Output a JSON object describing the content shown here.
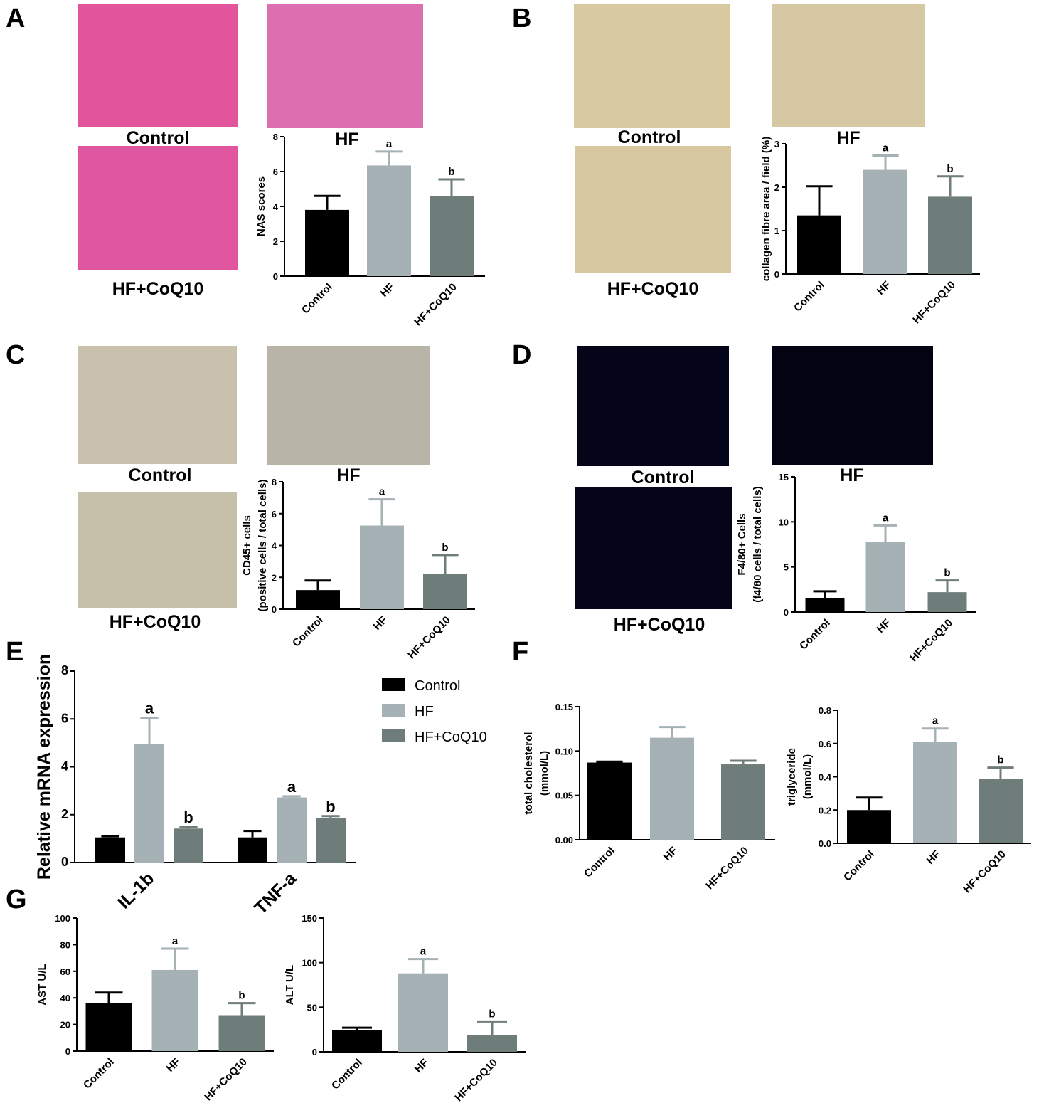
{
  "chart_data": [
    {
      "type": "bar",
      "panel": "A",
      "images": [
        {
          "label": "Control",
          "color": "#e2559c"
        },
        {
          "label": "HF",
          "color": "#dc6fb0"
        },
        {
          "label": "HF+CoQ10",
          "color": "#e0569f"
        }
      ],
      "ylabel": [
        "NAS scores"
      ],
      "categories": [
        "Control",
        "HF",
        "HF+CoQ10"
      ],
      "values": [
        3.8,
        6.35,
        4.6
      ],
      "errors": [
        0.8,
        0.8,
        0.95
      ],
      "annotations": [
        null,
        "a",
        "b"
      ],
      "colors": [
        "#000000",
        "#a5b1b5",
        "#6f7d7a"
      ],
      "ylim": [
        0,
        8
      ],
      "yticks": [
        0,
        2,
        4,
        6,
        8
      ]
    },
    {
      "type": "bar",
      "panel": "B",
      "images": [
        {
          "label": "Control",
          "color": "#d8c9a0"
        },
        {
          "label": "HF",
          "color": "#d6c8a2"
        },
        {
          "label": "HF+CoQ10",
          "color": "#d7c8a0"
        }
      ],
      "ylabel": [
        "collagen fibre area / field (%)"
      ],
      "categories": [
        "Control",
        "HF",
        "HF+CoQ10"
      ],
      "values": [
        1.35,
        2.4,
        1.78
      ],
      "errors": [
        0.67,
        0.33,
        0.47
      ],
      "annotations": [
        null,
        "a",
        "b"
      ],
      "colors": [
        "#000000",
        "#a5b1b5",
        "#6f7d7a"
      ],
      "ylim": [
        0,
        3
      ],
      "yticks": [
        0,
        1,
        2,
        3
      ]
    },
    {
      "type": "bar",
      "panel": "C",
      "images": [
        {
          "label": "Control",
          "color": "#c9c1ae"
        },
        {
          "label": "HF",
          "color": "#b9b4a8"
        },
        {
          "label": "HF+CoQ10",
          "color": "#c6bfaa"
        }
      ],
      "ylabel": [
        "CD45+ cells",
        "(positive cells / total cells)"
      ],
      "categories": [
        "Control",
        "HF",
        "HF+CoQ10"
      ],
      "values": [
        1.2,
        5.25,
        2.2
      ],
      "errors": [
        0.6,
        1.65,
        1.2
      ],
      "annotations": [
        null,
        "a",
        "b"
      ],
      "colors": [
        "#000000",
        "#a5b1b5",
        "#6f7d7a"
      ],
      "ylim": [
        0,
        8
      ],
      "yticks": [
        0,
        2,
        4,
        6,
        8
      ]
    },
    {
      "type": "bar",
      "panel": "D",
      "images": [
        {
          "label": "Control",
          "color": "#05051a"
        },
        {
          "label": "HF",
          "color": "#030312"
        },
        {
          "label": "HF+CoQ10",
          "color": "#05051a"
        }
      ],
      "ylabel": [
        "F4/80+ Cells",
        "(f4/80 cells / total cells)"
      ],
      "categories": [
        "Control",
        "HF",
        "HF+CoQ10"
      ],
      "values": [
        1.5,
        7.8,
        2.2
      ],
      "errors": [
        0.8,
        1.8,
        1.3
      ],
      "annotations": [
        null,
        "a",
        "b"
      ],
      "colors": [
        "#000000",
        "#a5b1b5",
        "#6f7d7a"
      ],
      "ylim": [
        0,
        15
      ],
      "yticks": [
        0,
        5,
        10,
        15
      ]
    },
    {
      "type": "grouped_bar",
      "panel": "E",
      "ylabel": [
        "Relative mRNA expression"
      ],
      "categories": [
        "IL-1b",
        "TNF-a"
      ],
      "series": [
        {
          "name": "Control",
          "color": "#000000",
          "values": [
            1.05,
            1.05
          ],
          "errors": [
            0.05,
            0.27
          ],
          "annotations": [
            null,
            null
          ]
        },
        {
          "name": "HF",
          "color": "#a5b1b5",
          "values": [
            4.95,
            2.72
          ],
          "errors": [
            1.1,
            0.05
          ],
          "annotations": [
            "a",
            "a"
          ]
        },
        {
          "name": "HF+CoQ10",
          "color": "#6f7d7a",
          "values": [
            1.42,
            1.87
          ],
          "errors": [
            0.07,
            0.07
          ],
          "annotations": [
            "b",
            "b"
          ]
        }
      ],
      "ylim": [
        0,
        8
      ],
      "yticks": [
        0,
        2,
        4,
        6,
        8
      ]
    },
    {
      "type": "bar",
      "panel": "F",
      "ylabel": [
        "total cholesterol",
        "(mmol/L)"
      ],
      "categories": [
        "Control",
        "HF",
        "HF+CoQ10"
      ],
      "values": [
        0.087,
        0.115,
        0.085
      ],
      "errors": [
        0.001,
        0.012,
        0.004
      ],
      "colors": [
        "#000000",
        "#a5b1b5",
        "#6f7d7a"
      ],
      "ylim": [
        0,
        0.15
      ],
      "yticks": [
        {
          "value": 0,
          "label": "0.00"
        },
        {
          "value": 0.05,
          "label": "0.05"
        },
        {
          "value": 0.1,
          "label": "0.10"
        },
        {
          "value": 0.15,
          "label": "0.15"
        }
      ]
    },
    {
      "type": "bar",
      "ylabel": [
        "triglyceride",
        "(mmol/L)"
      ],
      "categories": [
        "Control",
        "HF",
        "HF+CoQ10"
      ],
      "values": [
        0.2,
        0.61,
        0.385
      ],
      "errors": [
        0.075,
        0.08,
        0.07
      ],
      "annotations": [
        null,
        "a",
        "b"
      ],
      "colors": [
        "#000000",
        "#a5b1b5",
        "#6f7d7a"
      ],
      "ylim": [
        0,
        0.8
      ],
      "yticks": [
        {
          "value": 0,
          "label": "0.0"
        },
        {
          "value": 0.2,
          "label": "0.2"
        },
        {
          "value": 0.4,
          "label": "0.4"
        },
        {
          "value": 0.6,
          "label": "0.6"
        },
        {
          "value": 0.8,
          "label": "0.8"
        }
      ]
    },
    {
      "type": "bar",
      "panel": "G",
      "ylabel": [
        "AST  U/L"
      ],
      "categories": [
        "Control",
        "HF",
        "HF+CoQ10"
      ],
      "values": [
        36,
        61,
        27
      ],
      "errors": [
        8,
        16,
        9
      ],
      "annotations": [
        null,
        "a",
        "b"
      ],
      "colors": [
        "#000000",
        "#a5b1b5",
        "#6f7d7a"
      ],
      "ylim": [
        0,
        100
      ],
      "yticks": [
        0,
        20,
        40,
        60,
        80,
        100
      ]
    },
    {
      "type": "bar",
      "ylabel": [
        "ALT  U/L"
      ],
      "categories": [
        "Control",
        "HF",
        "HF+CoQ10"
      ],
      "values": [
        24,
        88,
        19
      ],
      "errors": [
        3,
        16,
        15
      ],
      "annotations": [
        null,
        "a",
        "b"
      ],
      "colors": [
        "#000000",
        "#a5b1b5",
        "#6f7d7a"
      ],
      "ylim": [
        0,
        150
      ],
      "yticks": [
        0,
        50,
        100,
        150
      ]
    }
  ]
}
